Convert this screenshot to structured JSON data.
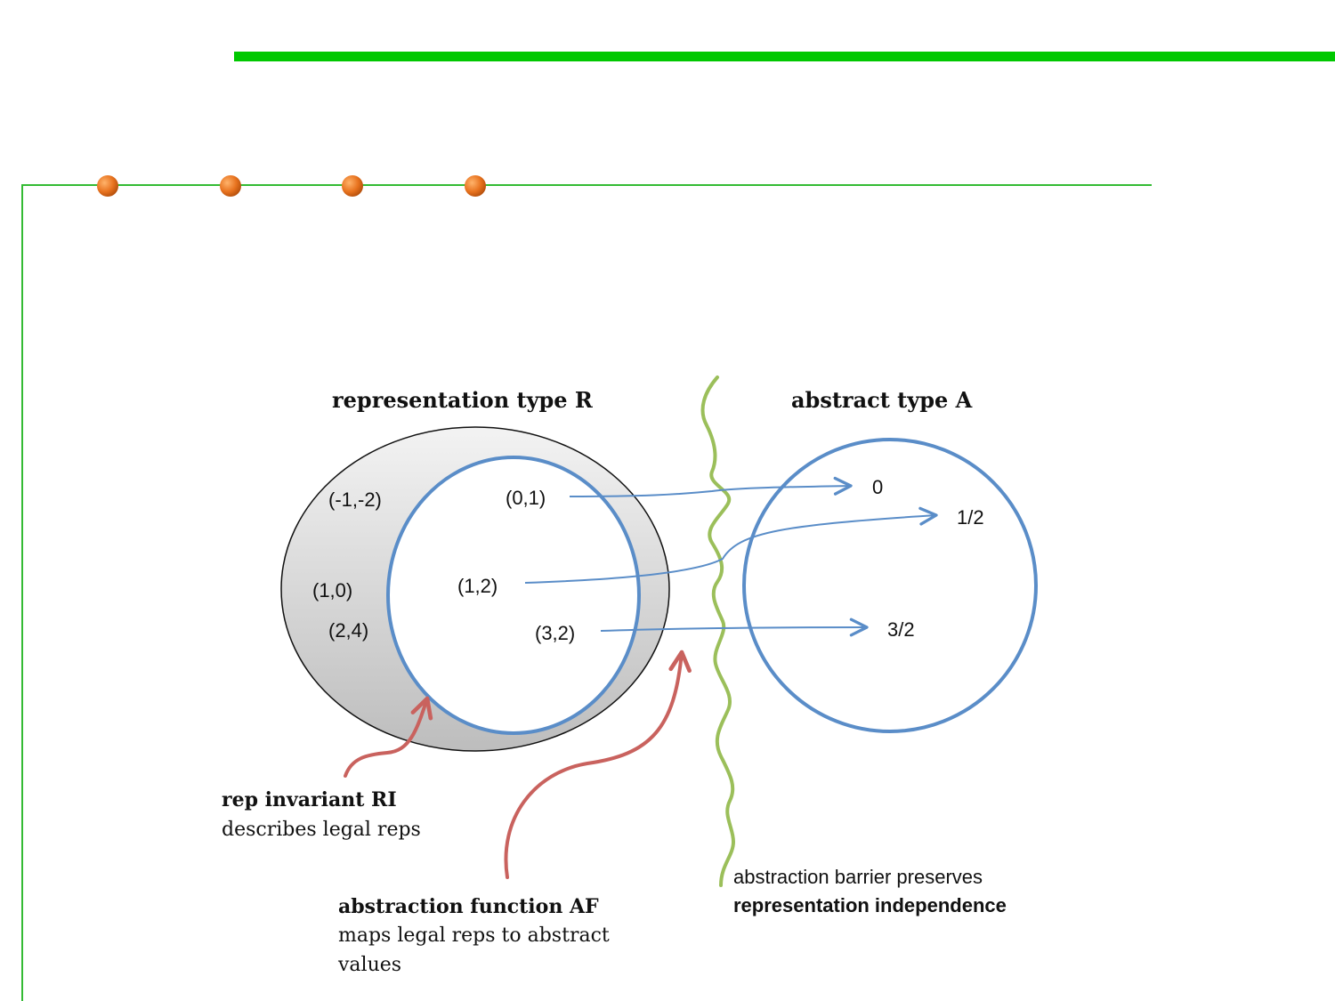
{
  "slide": {
    "accent_color": "#00c800",
    "bullet_color": "#e8731f",
    "bullet_count": 4
  },
  "diagram": {
    "rep_title": "representation type R",
    "abs_title": "abstract type A",
    "illegal_reps": [
      "(-1,-2)",
      "(1,0)",
      "(2,4)"
    ],
    "legal_reps": [
      "(0,1)",
      "(1,2)",
      "(3,2)"
    ],
    "abstract_values": [
      "0",
      "1/2",
      "3/2"
    ],
    "ri": {
      "title": "rep invariant RI",
      "desc": "describes legal reps"
    },
    "af": {
      "title": "abstraction function AF",
      "desc_line1": "maps legal reps to abstract",
      "desc_line2": "values"
    },
    "barrier": {
      "line1": "abstraction barrier preserves",
      "line2": "representation independence"
    },
    "colors": {
      "circle": "#5a8dc8",
      "barrier": "#9bbf5a",
      "pointer": "#c9625e"
    }
  }
}
